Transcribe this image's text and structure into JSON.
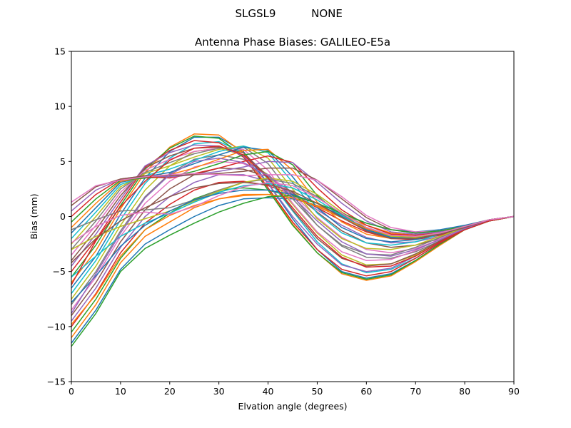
{
  "header": {
    "station": "SLGSL9",
    "radome": "NONE"
  },
  "chart_data": {
    "type": "line",
    "title": "Antenna Phase Biases: GALILEO-E5a",
    "xlabel": "Elvation angle (degrees)",
    "ylabel": "Bias (mm)",
    "xlim": [
      0,
      90
    ],
    "ylim": [
      -15,
      15
    ],
    "xticks": [
      "0",
      "10",
      "20",
      "30",
      "40",
      "50",
      "60",
      "70",
      "80",
      "90"
    ],
    "yticks": [
      "−15",
      "−10",
      "−5",
      "0",
      "5",
      "10",
      "15"
    ],
    "grid": false,
    "legend": "none",
    "x": [
      0,
      5,
      10,
      15,
      20,
      25,
      30,
      35,
      40,
      45,
      50,
      55,
      60,
      65,
      70,
      75,
      80,
      85,
      90
    ],
    "colors": [
      "#1f77b4",
      "#ff7f0e",
      "#2ca02c",
      "#d62728",
      "#9467bd",
      "#8c564b",
      "#e377c2",
      "#7f7f7f",
      "#bcbd22",
      "#17becf"
    ],
    "series": [
      {
        "values": [
          -11.5,
          -8.5,
          -4.8,
          -2.5,
          -1.2,
          0.0,
          1.0,
          1.6,
          1.7,
          1.6,
          1.0,
          0.2,
          -0.6,
          -1.2,
          -1.4,
          -1.2,
          -0.8,
          -0.3,
          0.0
        ]
      },
      {
        "values": [
          -11.0,
          -8.0,
          -4.2,
          -1.8,
          -0.5,
          0.8,
          1.6,
          2.0,
          2.0,
          1.7,
          1.0,
          0.1,
          -0.8,
          -1.5,
          -1.7,
          -1.4,
          -0.9,
          -0.3,
          0.0
        ]
      },
      {
        "values": [
          -10.5,
          -7.5,
          -3.8,
          -1.2,
          0.3,
          1.6,
          2.4,
          2.6,
          2.4,
          1.8,
          0.9,
          -0.1,
          -1.0,
          -1.7,
          -1.9,
          -1.6,
          -1.0,
          -0.3,
          0.0
        ]
      },
      {
        "values": [
          -10.0,
          -7.0,
          -3.3,
          -0.6,
          1.1,
          2.4,
          3.1,
          3.2,
          2.8,
          2.0,
          0.8,
          -0.4,
          -1.4,
          -2.0,
          -2.1,
          -1.7,
          -1.0,
          -0.3,
          0.0
        ]
      },
      {
        "values": [
          -9.5,
          -6.5,
          -2.8,
          0.0,
          1.8,
          3.1,
          3.8,
          3.8,
          3.2,
          2.1,
          0.6,
          -0.8,
          -1.9,
          -2.4,
          -2.3,
          -1.8,
          -1.1,
          -0.3,
          0.0
        ]
      },
      {
        "values": [
          -9.0,
          -6.0,
          -2.3,
          0.6,
          2.5,
          3.8,
          4.4,
          4.3,
          3.6,
          2.2,
          0.4,
          -1.3,
          -2.4,
          -2.8,
          -2.6,
          -2.0,
          -1.2,
          -0.4,
          0.0
        ]
      },
      {
        "values": [
          -8.5,
          -5.5,
          -1.8,
          1.2,
          3.2,
          4.5,
          5.0,
          4.8,
          3.8,
          2.0,
          -0.1,
          -1.9,
          -3.0,
          -3.3,
          -2.9,
          -2.1,
          -1.2,
          -0.4,
          0.0
        ]
      },
      {
        "values": [
          -8.0,
          -5.0,
          -1.3,
          1.8,
          3.9,
          5.2,
          5.6,
          5.2,
          3.8,
          1.6,
          -0.8,
          -2.7,
          -3.7,
          -3.8,
          -3.2,
          -2.2,
          -1.2,
          -0.4,
          0.0
        ]
      },
      {
        "values": [
          -7.5,
          -4.5,
          -0.8,
          2.4,
          4.6,
          5.9,
          6.2,
          5.6,
          3.7,
          1.1,
          -1.5,
          -3.5,
          -4.4,
          -4.3,
          -3.5,
          -2.3,
          -1.2,
          -0.4,
          0.0
        ]
      },
      {
        "values": [
          -7.0,
          -4.0,
          -0.3,
          3.0,
          5.3,
          6.6,
          6.8,
          5.8,
          3.4,
          0.5,
          -2.3,
          -4.3,
          -5.1,
          -4.8,
          -3.8,
          -2.4,
          -1.2,
          -0.4,
          0.0
        ]
      },
      {
        "values": [
          -6.5,
          -3.6,
          0.2,
          3.5,
          5.9,
          7.2,
          7.2,
          5.9,
          3.0,
          -0.2,
          -3.0,
          -5.0,
          -5.6,
          -5.2,
          -4.0,
          -2.5,
          -1.2,
          -0.4,
          0.0
        ]
      },
      {
        "values": [
          -6.0,
          -3.1,
          0.7,
          4.0,
          6.3,
          7.5,
          7.4,
          5.8,
          2.6,
          -0.7,
          -3.3,
          -5.2,
          -5.8,
          -5.4,
          -4.1,
          -2.6,
          -1.2,
          -0.4,
          0.0
        ]
      },
      {
        "values": [
          -5.5,
          -2.6,
          1.0,
          4.3,
          6.2,
          7.3,
          7.1,
          5.5,
          2.4,
          -0.8,
          -3.3,
          -5.1,
          -5.7,
          -5.3,
          -4.0,
          -2.5,
          -1.2,
          -0.4,
          0.0
        ]
      },
      {
        "values": [
          -5.0,
          -2.1,
          1.3,
          4.5,
          6.0,
          6.9,
          6.7,
          5.4,
          2.6,
          -0.5,
          -3.0,
          -4.8,
          -5.4,
          -5.0,
          -3.8,
          -2.4,
          -1.2,
          -0.4,
          0.0
        ]
      },
      {
        "values": [
          -4.5,
          -1.6,
          1.6,
          4.6,
          5.8,
          6.5,
          6.4,
          5.5,
          3.0,
          0.0,
          -2.5,
          -4.4,
          -5.0,
          -4.7,
          -3.6,
          -2.3,
          -1.1,
          -0.3,
          0.0
        ]
      },
      {
        "values": [
          -4.0,
          -1.2,
          1.9,
          4.4,
          5.5,
          6.2,
          6.3,
          5.8,
          3.6,
          0.6,
          -2.0,
          -3.8,
          -4.5,
          -4.3,
          -3.4,
          -2.2,
          -1.1,
          -0.3,
          0.0
        ]
      },
      {
        "values": [
          -3.5,
          -0.8,
          2.2,
          4.2,
          5.2,
          5.9,
          6.2,
          6.1,
          4.2,
          1.2,
          -1.4,
          -3.2,
          -4.0,
          -3.9,
          -3.1,
          -2.0,
          -1.0,
          -0.3,
          0.0
        ]
      },
      {
        "values": [
          -3.0,
          -0.4,
          2.5,
          4.0,
          4.9,
          5.7,
          6.2,
          6.3,
          4.8,
          1.9,
          -0.8,
          -2.6,
          -3.4,
          -3.5,
          -2.8,
          -1.9,
          -1.0,
          -0.3,
          0.0
        ]
      },
      {
        "values": [
          -2.5,
          0.0,
          2.7,
          3.9,
          4.6,
          5.4,
          6.1,
          6.4,
          5.3,
          2.5,
          -0.2,
          -2.0,
          -2.9,
          -3.0,
          -2.6,
          -1.8,
          -1.0,
          -0.3,
          0.0
        ]
      },
      {
        "values": [
          -2.0,
          0.4,
          2.9,
          3.7,
          4.3,
          5.1,
          5.9,
          6.4,
          5.8,
          3.1,
          0.3,
          -1.5,
          -2.4,
          -2.6,
          -2.3,
          -1.6,
          -0.9,
          -0.3,
          0.0
        ]
      },
      {
        "values": [
          -1.5,
          0.8,
          3.1,
          3.6,
          4.0,
          4.8,
          5.6,
          6.3,
          6.0,
          3.6,
          0.8,
          -1.0,
          -2.0,
          -2.3,
          -2.1,
          -1.5,
          -0.9,
          -0.3,
          0.0
        ]
      },
      {
        "values": [
          -1.0,
          1.2,
          3.2,
          3.5,
          3.8,
          4.4,
          5.2,
          6.0,
          6.1,
          4.2,
          1.3,
          -0.5,
          -1.6,
          -2.0,
          -1.9,
          -1.4,
          -0.9,
          -0.3,
          0.0
        ]
      },
      {
        "values": [
          -0.5,
          1.6,
          3.3,
          3.5,
          3.6,
          4.1,
          4.8,
          5.6,
          5.9,
          4.7,
          1.9,
          0.0,
          -1.2,
          -1.8,
          -1.8,
          -1.4,
          -0.9,
          -0.3,
          0.0
        ]
      },
      {
        "values": [
          0.0,
          2.0,
          3.4,
          3.6,
          3.5,
          3.9,
          4.4,
          5.0,
          5.5,
          4.9,
          2.6,
          0.6,
          -0.8,
          -1.6,
          -1.7,
          -1.4,
          -0.9,
          -0.3,
          0.0
        ]
      },
      {
        "values": [
          0.5,
          2.4,
          3.4,
          3.7,
          3.6,
          3.8,
          4.1,
          4.5,
          5.0,
          4.9,
          3.1,
          1.2,
          -0.4,
          -1.4,
          -1.6,
          -1.4,
          -0.9,
          -0.3,
          0.0
        ]
      },
      {
        "values": [
          1.0,
          2.7,
          3.4,
          3.7,
          3.7,
          3.8,
          3.9,
          4.1,
          4.4,
          4.4,
          3.3,
          1.6,
          -0.1,
          -1.2,
          -1.5,
          -1.3,
          -0.9,
          -0.3,
          0.0
        ]
      },
      {
        "values": [
          1.3,
          2.8,
          3.3,
          3.6,
          3.8,
          3.9,
          3.8,
          3.7,
          3.8,
          3.8,
          3.3,
          1.8,
          0.1,
          -1.0,
          -1.4,
          -1.3,
          -0.9,
          -0.3,
          0.0
        ]
      },
      {
        "values": [
          -1.2,
          -0.3,
          0.5,
          0.6,
          0.8,
          1.5,
          2.4,
          3.1,
          3.4,
          3.0,
          1.8,
          0.2,
          -1.2,
          -1.9,
          -2.0,
          -1.6,
          -1.0,
          -0.3,
          0.0
        ]
      },
      {
        "values": [
          -3.0,
          -1.8,
          -0.9,
          -0.2,
          0.5,
          1.4,
          2.3,
          3.1,
          3.5,
          3.2,
          2.0,
          0.4,
          -1.0,
          -1.8,
          -1.9,
          -1.5,
          -1.0,
          -0.3,
          0.0
        ]
      },
      {
        "values": [
          -5.5,
          -3.6,
          -1.8,
          -0.6,
          0.3,
          1.3,
          2.2,
          2.8,
          3.0,
          2.6,
          1.5,
          0.1,
          -1.2,
          -1.9,
          -2.0,
          -1.6,
          -1.0,
          -0.3,
          0.0
        ]
      },
      {
        "values": [
          -7.8,
          -5.4,
          -2.7,
          -0.8,
          0.5,
          1.5,
          2.1,
          2.4,
          2.4,
          2.0,
          1.2,
          0.0,
          -1.2,
          -1.9,
          -2.0,
          -1.6,
          -1.0,
          -0.3,
          0.0
        ]
      },
      {
        "values": [
          -9.8,
          -7.1,
          -3.6,
          -1.2,
          0.1,
          1.0,
          1.6,
          1.9,
          2.0,
          1.7,
          0.9,
          -0.1,
          -1.1,
          -1.7,
          -1.8,
          -1.5,
          -0.9,
          -0.3,
          0.0
        ]
      },
      {
        "values": [
          -11.8,
          -8.8,
          -5.0,
          -2.9,
          -1.7,
          -0.6,
          0.4,
          1.2,
          1.8,
          1.9,
          1.2,
          0.3,
          -0.6,
          -1.2,
          -1.5,
          -1.3,
          -0.9,
          -0.3,
          0.0
        ]
      },
      {
        "values": [
          -6.2,
          -2.2,
          0.9,
          3.2,
          5.1,
          6.2,
          6.4,
          5.6,
          3.5,
          0.8,
          -1.8,
          -3.7,
          -4.6,
          -4.5,
          -3.6,
          -2.3,
          -1.1,
          -0.3,
          0.0
        ]
      },
      {
        "values": [
          -8.8,
          -5.2,
          -1.5,
          1.7,
          3.8,
          5.0,
          5.3,
          4.9,
          3.7,
          1.8,
          -0.4,
          -2.3,
          -3.4,
          -3.6,
          -3.0,
          -2.1,
          -1.1,
          -0.3,
          0.0
        ]
      },
      {
        "values": [
          -4.2,
          -2.0,
          -0.4,
          0.8,
          1.8,
          2.6,
          3.0,
          3.1,
          2.9,
          2.3,
          1.2,
          -0.1,
          -1.3,
          -2.0,
          -2.0,
          -1.6,
          -1.0,
          -0.3,
          0.0
        ]
      },
      {
        "values": [
          -2.4,
          -0.9,
          0.1,
          0.4,
          0.2,
          0.9,
          1.9,
          2.7,
          3.1,
          2.8,
          1.7,
          0.3,
          -1.0,
          -1.7,
          -1.8,
          -1.5,
          -0.9,
          -0.3,
          0.0
        ]
      }
    ]
  }
}
